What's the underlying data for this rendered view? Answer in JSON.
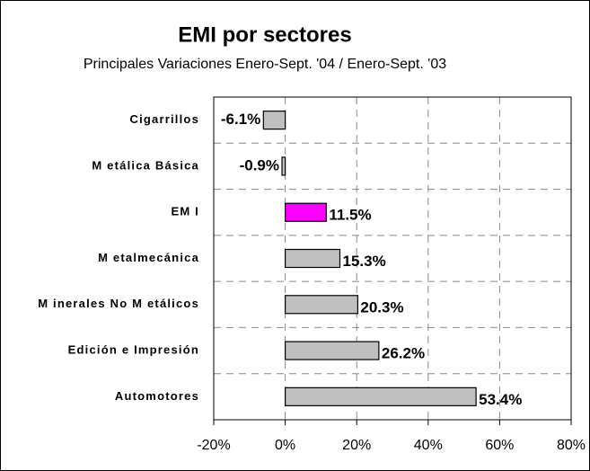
{
  "chart_data": {
    "type": "bar",
    "orientation": "horizontal",
    "title": "EMI por sectores",
    "subtitle": "Principales Variaciones Enero-Sept. '04 / Enero-Sept. '03",
    "categories": [
      "Cigarrillos",
      "M etálica Básica",
      "EM I",
      "M etalmecánica",
      "M inerales No M etálicos",
      "Edición e Impresión",
      "Automotores"
    ],
    "values": [
      -6.1,
      -0.9,
      11.5,
      15.3,
      20.3,
      26.2,
      53.4
    ],
    "value_labels": [
      "-6.1%",
      "-0.9%",
      "11.5%",
      "15.3%",
      "20.3%",
      "26.2%",
      "53.4%"
    ],
    "colors": [
      "#c0c0c0",
      "#c0c0c0",
      "#ff00ff",
      "#c0c0c0",
      "#c0c0c0",
      "#c0c0c0",
      "#c0c0c0"
    ],
    "xlim": [
      -20,
      80
    ],
    "xticks": [
      {
        "value": -20,
        "label": "-20%"
      },
      {
        "value": 0,
        "label": "0%"
      },
      {
        "value": 20,
        "label": "20%"
      },
      {
        "value": 40,
        "label": "40%"
      },
      {
        "value": 60,
        "label": "60%"
      },
      {
        "value": 80,
        "label": "80%"
      }
    ],
    "grid": true
  }
}
